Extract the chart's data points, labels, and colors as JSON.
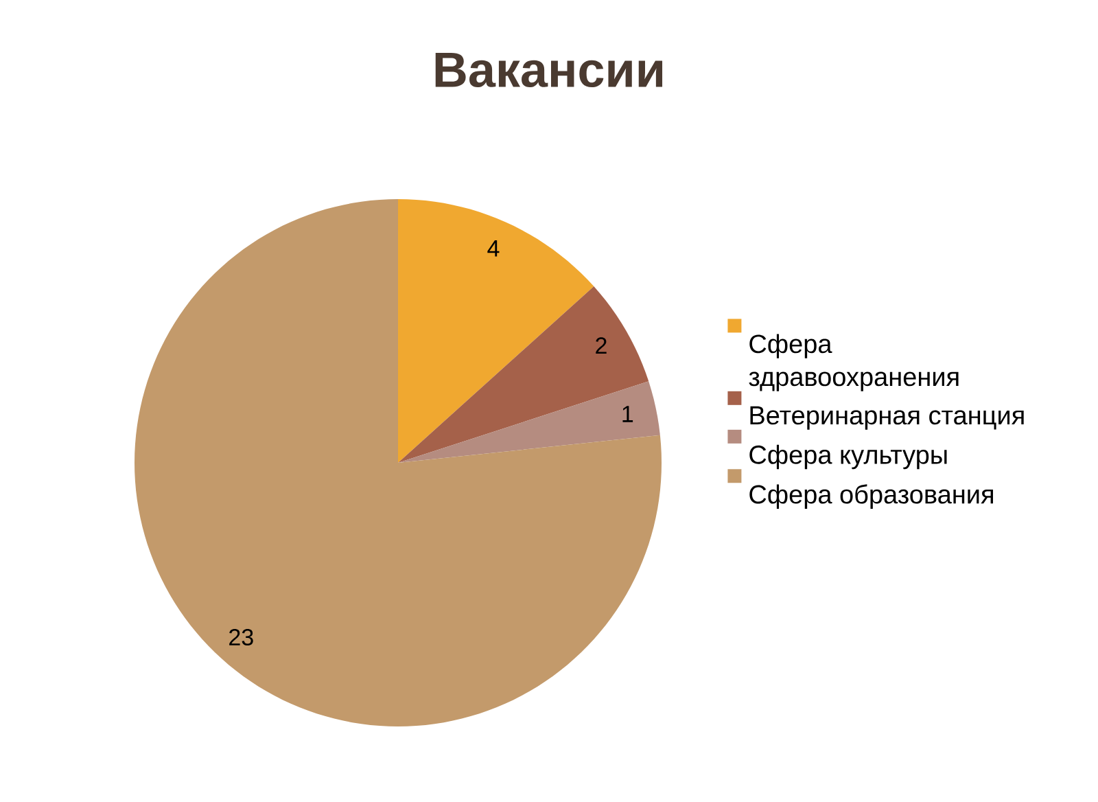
{
  "chart_data": {
    "type": "pie",
    "title": "Вакансии",
    "categories": [
      "Сфера здравоохранения",
      "Ветеринарная станция",
      "Сфера культуры",
      "Сфера образования"
    ],
    "values": [
      4,
      2,
      1,
      23
    ],
    "colors": [
      "#f0a830",
      "#a5614a",
      "#b58c80",
      "#c39a6b"
    ],
    "data_labels": true,
    "legend": "right"
  }
}
